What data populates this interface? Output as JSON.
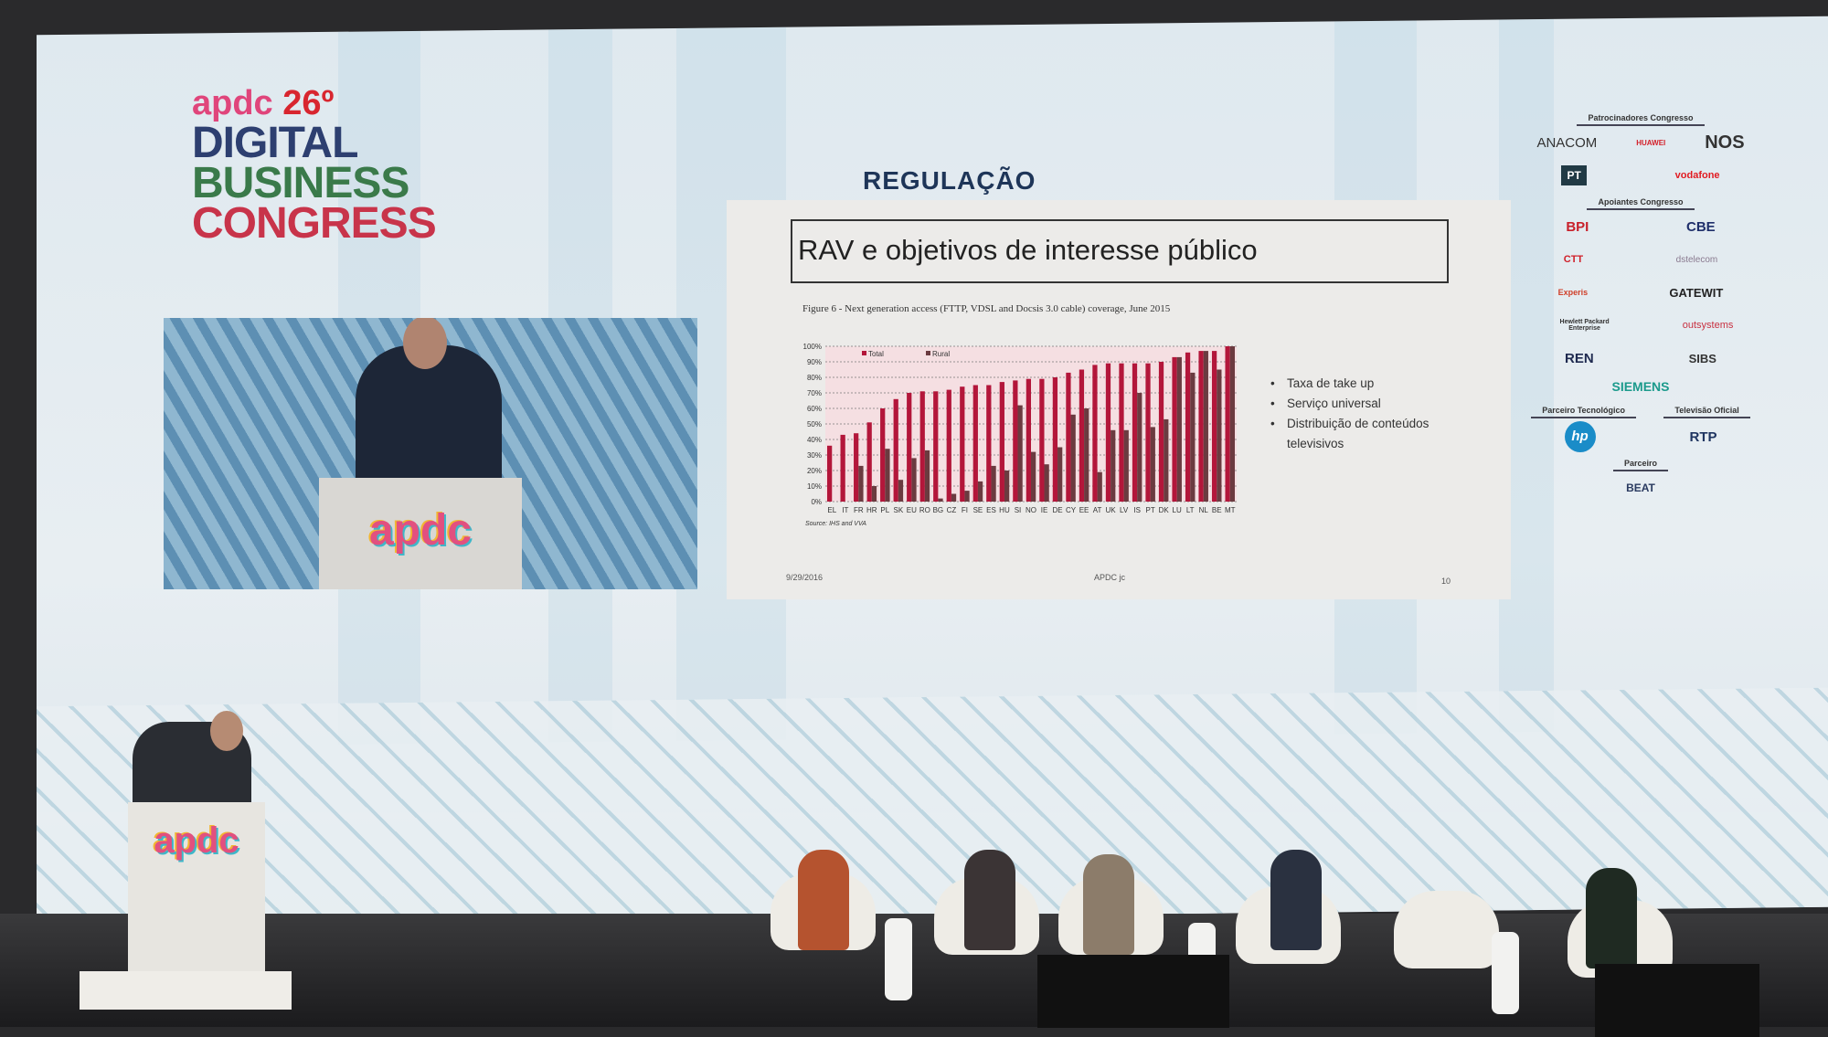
{
  "event_logo": {
    "brand": "apdc",
    "edition": "26º",
    "line1": "DIGITAL",
    "line2": "BUSINESS",
    "line3": "CONGRESS"
  },
  "section_title": "REGULAÇÃO",
  "podium_logo": "apdc",
  "slide": {
    "title": "RAV e objetivos de interesse público",
    "figure_caption": "Figure 6 - Next generation access (FTTP, VDSL and Docsis 3.0 cable) coverage, June 2015",
    "source": "Source: IHS and VVA",
    "bullets": [
      "Taxa de take up",
      "Serviço universal",
      "Distribuição de conteúdos televisivos"
    ],
    "footer_date": "9/29/2016",
    "footer_center": "APDC jc",
    "page_number": "10"
  },
  "chart_data": {
    "type": "bar",
    "title": "Figure 6 - Next generation access (FTTP, VDSL and Docsis 3.0 cable) coverage, June 2015",
    "categories": [
      "EL",
      "IT",
      "FR",
      "HR",
      "PL",
      "SK",
      "EU",
      "RO",
      "BG",
      "CZ",
      "FI",
      "SE",
      "ES",
      "HU",
      "SI",
      "NO",
      "IE",
      "DE",
      "CY",
      "EE",
      "AT",
      "UK",
      "LV",
      "IS",
      "PT",
      "DK",
      "LU",
      "LT",
      "NL",
      "BE",
      "MT"
    ],
    "series": [
      {
        "name": "Total",
        "color": "#b3163a",
        "values": [
          36,
          43,
          44,
          51,
          60,
          66,
          70,
          71,
          71,
          72,
          74,
          75,
          75,
          77,
          78,
          79,
          79,
          80,
          83,
          85,
          88,
          89,
          89,
          89,
          89,
          90,
          93,
          96,
          97,
          97,
          100
        ]
      },
      {
        "name": "Rural",
        "color": "#6b3b40",
        "values": [
          0,
          0,
          23,
          10,
          34,
          14,
          28,
          33,
          2,
          5,
          7,
          13,
          23,
          20,
          62,
          32,
          24,
          35,
          56,
          60,
          19,
          46,
          46,
          70,
          48,
          53,
          93,
          83,
          97,
          85,
          100
        ]
      }
    ],
    "yticks": [
      "0%",
      "10%",
      "20%",
      "30%",
      "40%",
      "50%",
      "60%",
      "70%",
      "80%",
      "90%",
      "100%"
    ],
    "ylim": [
      0,
      100
    ],
    "grid": true,
    "legend": "top-left",
    "background": "#f5dfe2"
  },
  "sponsors": {
    "headings": {
      "main": "Patrocinadores Congresso",
      "support": "Apoiantes Congresso",
      "tech": "Parceiro Tecnológico",
      "tv": "Televisão Oficial",
      "partner": "Parceiro"
    },
    "main": [
      "ANACOM",
      "HUAWEI",
      "NOS",
      "PT",
      "vodafone"
    ],
    "support": [
      "BPI",
      "CBE",
      "CTT",
      "dstelecom",
      "Experis",
      "GATEWIT",
      "Hewlett Packard Enterprise",
      "outsystems",
      "REN",
      "SIBS",
      "SIEMENS"
    ],
    "tech": "hp",
    "tv": "RTP",
    "partner": "BEAT"
  }
}
